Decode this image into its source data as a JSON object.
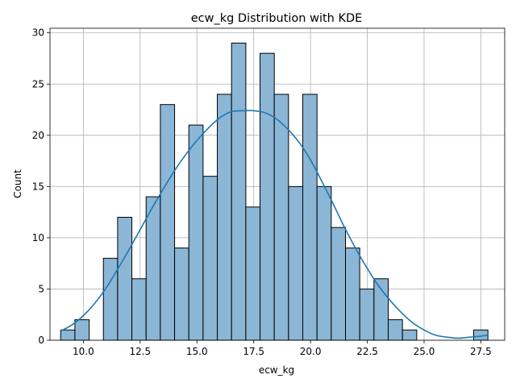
{
  "chart_data": {
    "type": "bar",
    "subtype": "histogram-with-kde",
    "title": "ecw_kg Distribution with KDE",
    "xlabel": "ecw_kg",
    "ylabel": "Count",
    "xlim": [
      8.53,
      28.55
    ],
    "ylim": [
      0,
      30.45
    ],
    "grid": true,
    "bar_color": "#8bb6d6",
    "kde_color": "#1f77b4",
    "x_ticks": [
      10.0,
      12.5,
      15.0,
      17.5,
      20.0,
      22.5,
      25.0,
      27.5
    ],
    "x_tick_labels": [
      "10.0",
      "12.5",
      "15.0",
      "17.5",
      "20.0",
      "22.5",
      "25.0",
      "27.5"
    ],
    "y_ticks": [
      0,
      5,
      10,
      15,
      20,
      25,
      30
    ],
    "y_tick_labels": [
      "0",
      "5",
      "10",
      "15",
      "20",
      "25",
      "30"
    ],
    "bin_start": 9.0,
    "bin_width": 0.627,
    "counts": [
      1,
      2,
      0,
      8,
      12,
      6,
      14,
      23,
      9,
      21,
      16,
      24,
      29,
      13,
      28,
      24,
      15,
      24,
      15,
      11,
      9,
      5,
      6,
      2,
      1,
      0,
      0,
      0,
      0,
      1
    ],
    "kde": {
      "x": [
        9.0,
        9.5,
        10.0,
        10.5,
        11.0,
        11.5,
        12.0,
        12.5,
        13.0,
        13.5,
        14.0,
        14.5,
        15.0,
        15.5,
        16.0,
        16.5,
        17.0,
        17.5,
        18.0,
        18.5,
        19.0,
        19.5,
        20.0,
        20.5,
        21.0,
        21.5,
        22.0,
        22.5,
        23.0,
        23.5,
        24.0,
        24.5,
        25.0,
        25.5,
        26.0,
        26.5,
        27.0,
        27.5,
        27.8
      ],
      "y": [
        0.9,
        1.5,
        2.4,
        3.6,
        5.1,
        6.9,
        8.8,
        10.8,
        12.8,
        14.7,
        16.5,
        18.1,
        19.5,
        20.7,
        21.7,
        22.3,
        22.4,
        22.4,
        22.2,
        21.6,
        20.6,
        19.3,
        17.6,
        15.5,
        13.3,
        11.0,
        8.9,
        7.0,
        5.3,
        3.9,
        2.7,
        1.7,
        1.0,
        0.5,
        0.3,
        0.2,
        0.3,
        0.4,
        0.5
      ]
    }
  }
}
